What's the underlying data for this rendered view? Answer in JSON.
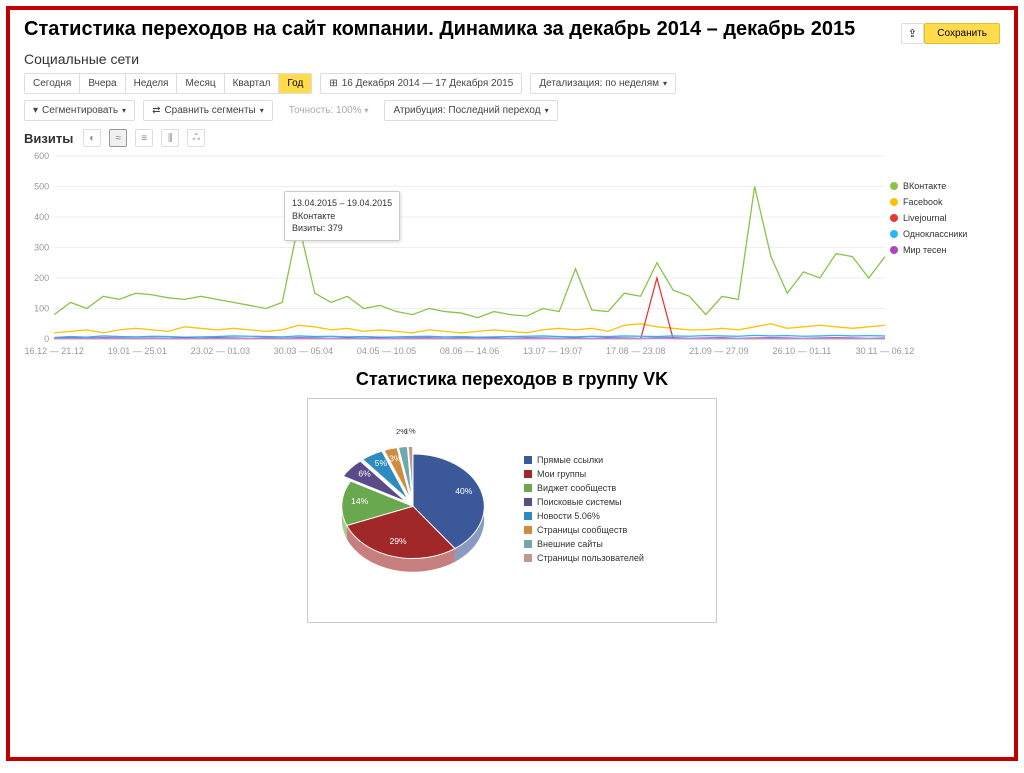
{
  "main_title": "Статистика переходов на сайт компании. Динамика за  декабрь 2014 – декабрь 2015",
  "section_title": "Социальные сети",
  "period_buttons": {
    "items": [
      "Сегодня",
      "Вчера",
      "Неделя",
      "Месяц",
      "Квартал",
      "Год"
    ],
    "active_index": 5
  },
  "date_range": "16 Декабря 2014 — 17 Декабря 2015",
  "detail_button": "Детализация: по неделям",
  "segment_button": "Сегментировать",
  "compare_button": "Сравнить сегменты",
  "precision_label": "Точность: 100%",
  "attribution_button": "Атрибуция: Последний переход",
  "save_button": "Сохранить",
  "export_icon": "⇪",
  "visits_label": "Визиты",
  "chart_icons": [
    "◐",
    "≈",
    "≡",
    "⫼",
    "ஃ"
  ],
  "chart_icon_active": 1,
  "tooltip": {
    "date": "13.04.2015 – 19.04.2015",
    "source": "ВКонтакте",
    "visits_label": "Визиты:",
    "visits_value": "379"
  },
  "line_chart": {
    "type": "line",
    "ylim": [
      0,
      600
    ],
    "ytick_step": 100,
    "x_labels": [
      "16.12 — 21.12",
      "19.01 — 25.01",
      "23.02 — 01.03",
      "30.03 — 05.04",
      "04.05 — 10.05",
      "08.06 — 14.06",
      "13.07 — 19.07",
      "17.08 — 23.08",
      "21.09 — 27.09",
      "26.10 — 01.11",
      "30.11 — 06.12"
    ],
    "grid_color": "#eeeeee",
    "background_color": "#ffffff",
    "series": [
      {
        "name": "ВКонтакте",
        "color": "#8bc34a",
        "data": [
          80,
          120,
          100,
          140,
          130,
          150,
          145,
          135,
          130,
          140,
          130,
          120,
          110,
          100,
          120,
          379,
          150,
          120,
          140,
          100,
          110,
          90,
          80,
          100,
          90,
          85,
          70,
          90,
          80,
          75,
          100,
          90,
          230,
          95,
          90,
          150,
          140,
          250,
          160,
          140,
          80,
          140,
          130,
          500,
          270,
          150,
          220,
          200,
          280,
          270,
          200,
          270
        ]
      },
      {
        "name": "Facebook",
        "color": "#ffc107",
        "data": [
          20,
          25,
          30,
          20,
          30,
          35,
          30,
          25,
          40,
          35,
          30,
          35,
          30,
          25,
          30,
          45,
          40,
          30,
          35,
          25,
          30,
          25,
          20,
          30,
          25,
          20,
          25,
          30,
          25,
          20,
          30,
          35,
          30,
          35,
          25,
          45,
          50,
          40,
          35,
          30,
          30,
          35,
          30,
          40,
          50,
          35,
          40,
          45,
          40,
          35,
          40,
          45
        ]
      },
      {
        "name": "Livejournal",
        "color": "#e53935",
        "data": [
          0,
          0,
          0,
          0,
          0,
          0,
          0,
          0,
          0,
          0,
          0,
          0,
          0,
          0,
          0,
          0,
          0,
          0,
          0,
          0,
          0,
          0,
          0,
          0,
          0,
          0,
          0,
          0,
          0,
          0,
          0,
          0,
          0,
          0,
          0,
          0,
          0,
          200,
          0,
          0,
          0,
          0,
          0,
          0,
          0,
          0,
          0,
          0,
          0,
          0,
          0,
          0
        ]
      },
      {
        "name": "Одноклассники",
        "color": "#29b6f6",
        "data": [
          5,
          8,
          6,
          10,
          8,
          7,
          9,
          8,
          6,
          7,
          8,
          10,
          9,
          8,
          7,
          10,
          8,
          9,
          7,
          8,
          6,
          7,
          8,
          9,
          7,
          8,
          6,
          7,
          8,
          9,
          10,
          8,
          7,
          9,
          8,
          10,
          9,
          8,
          10,
          9,
          11,
          10,
          9,
          12,
          10,
          11,
          9,
          10,
          12,
          10,
          11,
          10
        ]
      },
      {
        "name": "Мир тесен",
        "color": "#ab47bc",
        "data": [
          2,
          3,
          2,
          4,
          3,
          2,
          3,
          2,
          3,
          2,
          4,
          3,
          2,
          3,
          2,
          4,
          3,
          2,
          3,
          2,
          3,
          2,
          3,
          4,
          2,
          3,
          2,
          3,
          2,
          4,
          3,
          2,
          3,
          2,
          4,
          3,
          2,
          3,
          4,
          2,
          3,
          4,
          2,
          3,
          4,
          3,
          2,
          3,
          4,
          3,
          2,
          3
        ]
      }
    ]
  },
  "legend_items": [
    {
      "label": "ВКонтакте",
      "color": "#8bc34a"
    },
    {
      "label": "Facebook",
      "color": "#ffc107"
    },
    {
      "label": "Livejournal",
      "color": "#e53935"
    },
    {
      "label": "Одноклассники",
      "color": "#29b6f6"
    },
    {
      "label": "Мир тесен",
      "color": "#ab47bc"
    }
  ],
  "sub_title": "Статистика переходов в группу VK",
  "pie_chart": {
    "type": "pie",
    "slices": [
      {
        "label": "Прямые ссылки",
        "value": 40,
        "color": "#3b5998",
        "text": "40%"
      },
      {
        "label": "Мои группы",
        "value": 29,
        "color": "#a02828",
        "text": "29%"
      },
      {
        "label": "Виджет сообществ",
        "value": 14,
        "color": "#6aa84f",
        "text": "14%"
      },
      {
        "label": "Поисковые системы",
        "value": 6,
        "color": "#5b4a8a",
        "text": "6%"
      },
      {
        "label": "Новости 5.06%",
        "value": 5,
        "color": "#2e8bc0",
        "text": "5%"
      },
      {
        "label": "Страницы сообществ",
        "value": 3,
        "color": "#d08c3c",
        "text": "3%"
      },
      {
        "label": "Внешние сайты",
        "value": 2,
        "color": "#6fa8ae",
        "text": "2%"
      },
      {
        "label": "Страницы пользователей",
        "value": 1,
        "color": "#b89c8c",
        "text": "1%"
      }
    ]
  }
}
